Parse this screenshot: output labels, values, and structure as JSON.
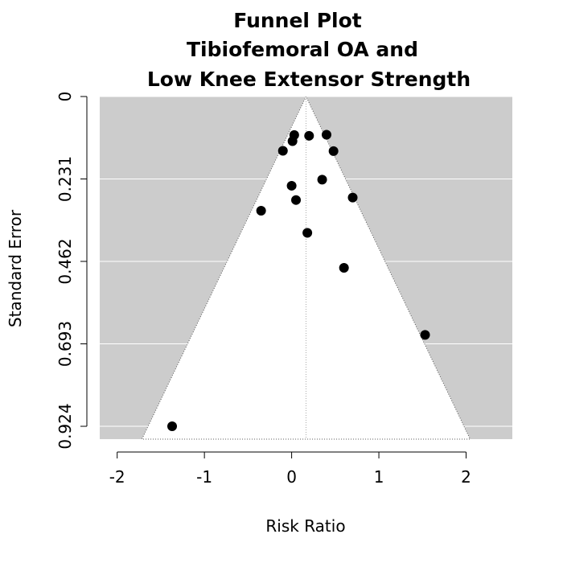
{
  "chart_data": {
    "type": "scatter",
    "title": [
      "Funnel Plot",
      "Tibiofemoral OA and",
      "Low Knee Extensor Strength"
    ],
    "xlabel": "Risk Ratio",
    "ylabel": "Standard Error",
    "xlim": [
      -2.2,
      2.53
    ],
    "ylim": [
      0.96,
      0
    ],
    "x_ticks": [
      -2,
      -1,
      0,
      1,
      2
    ],
    "x_tick_labels": [
      "-2",
      "-1",
      "0",
      "1",
      "2"
    ],
    "y_ticks": [
      0,
      0.231,
      0.462,
      0.693,
      0.924
    ],
    "y_tick_labels": [
      "0",
      "0.231",
      "0.462",
      "0.693",
      "0.924"
    ],
    "y_reversed": true,
    "grid": "horizontal",
    "funnel": {
      "center": 0.165,
      "z": 1.96,
      "line": "dotted"
    },
    "colors": {
      "background": "#cccccc",
      "funnel_fill": "#ffffff",
      "points": "#000000",
      "grid": "#ffffff"
    },
    "points": [
      {
        "x": 0.03,
        "y": 0.108
      },
      {
        "x": 0.2,
        "y": 0.11
      },
      {
        "x": 0.4,
        "y": 0.107
      },
      {
        "x": 0.01,
        "y": 0.125
      },
      {
        "x": -0.1,
        "y": 0.152
      },
      {
        "x": 0.48,
        "y": 0.153
      },
      {
        "x": 0.35,
        "y": 0.233
      },
      {
        "x": 0.0,
        "y": 0.25
      },
      {
        "x": 0.7,
        "y": 0.283
      },
      {
        "x": 0.05,
        "y": 0.29
      },
      {
        "x": -0.35,
        "y": 0.32
      },
      {
        "x": 0.18,
        "y": 0.382
      },
      {
        "x": 0.6,
        "y": 0.48
      },
      {
        "x": 1.53,
        "y": 0.668
      },
      {
        "x": -1.37,
        "y": 0.924
      }
    ]
  }
}
